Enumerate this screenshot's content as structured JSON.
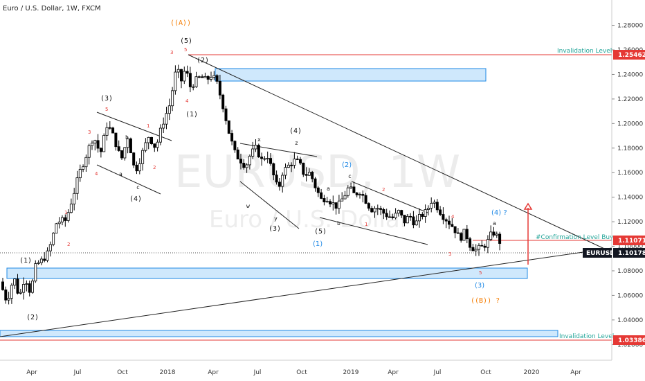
{
  "chart": {
    "title": "Euro / U.S. Dollar, 1W, FXCM",
    "watermark_big": "EURUSD, 1W",
    "watermark_small": "Euro / U.S. Dollar"
  },
  "chart_data": {
    "type": "candlestick",
    "symbol": "EURUSD",
    "timeframe": "1W",
    "source": "FXCM",
    "ylim": [
      1.01,
      1.295
    ],
    "y_ticks": [
      "1.28000",
      "1.26000",
      "1.24000",
      "1.22000",
      "1.20000",
      "1.18000",
      "1.16000",
      "1.14000",
      "1.12000",
      "1.10000",
      "1.08000",
      "1.06000",
      "1.04000",
      "1.02000"
    ],
    "x_ticks": [
      "Apr",
      "Jul",
      "Oct",
      "2018",
      "Apr",
      "Jul",
      "Oct",
      "2019",
      "Apr",
      "Jul",
      "Oct",
      "2020",
      "Apr"
    ],
    "path": [
      [
        0,
        1.071
      ],
      [
        10,
        1.055
      ],
      [
        20,
        1.075
      ],
      [
        28,
        1.058
      ],
      [
        36,
        1.076
      ],
      [
        44,
        1.062
      ],
      [
        52,
        1.085
      ],
      [
        60,
        1.088
      ],
      [
        70,
        1.095
      ],
      [
        82,
        1.12
      ],
      [
        95,
        1.121
      ],
      [
        105,
        1.14
      ],
      [
        115,
        1.16
      ],
      [
        125,
        1.175
      ],
      [
        135,
        1.19
      ],
      [
        145,
        1.175
      ],
      [
        155,
        1.2
      ],
      [
        165,
        1.188
      ],
      [
        175,
        1.17
      ],
      [
        185,
        1.19
      ],
      [
        195,
        1.16
      ],
      [
        205,
        1.175
      ],
      [
        215,
        1.19
      ],
      [
        225,
        1.18
      ],
      [
        235,
        1.2
      ],
      [
        245,
        1.215
      ],
      [
        255,
        1.245
      ],
      [
        262,
        1.235
      ],
      [
        268,
        1.245
      ],
      [
        275,
        1.23
      ],
      [
        283,
        1.235
      ],
      [
        290,
        1.238
      ],
      [
        298,
        1.235
      ],
      [
        306,
        1.24
      ],
      [
        314,
        1.232
      ],
      [
        322,
        1.215
      ],
      [
        332,
        1.19
      ],
      [
        340,
        1.175
      ],
      [
        348,
        1.17
      ],
      [
        355,
        1.165
      ],
      [
        362,
        1.175
      ],
      [
        370,
        1.18
      ],
      [
        378,
        1.17
      ],
      [
        386,
        1.175
      ],
      [
        394,
        1.16
      ],
      [
        402,
        1.145
      ],
      [
        408,
        1.16
      ],
      [
        416,
        1.165
      ],
      [
        424,
        1.17
      ],
      [
        432,
        1.168
      ],
      [
        440,
        1.158
      ],
      [
        448,
        1.16
      ],
      [
        456,
        1.148
      ],
      [
        464,
        1.138
      ],
      [
        472,
        1.14
      ],
      [
        480,
        1.135
      ],
      [
        488,
        1.132
      ],
      [
        496,
        1.14
      ],
      [
        504,
        1.148
      ],
      [
        512,
        1.142
      ],
      [
        520,
        1.145
      ],
      [
        528,
        1.138
      ],
      [
        536,
        1.13
      ],
      [
        544,
        1.132
      ],
      [
        552,
        1.128
      ],
      [
        560,
        1.125
      ],
      [
        568,
        1.123
      ],
      [
        576,
        1.128
      ],
      [
        584,
        1.12
      ],
      [
        592,
        1.125
      ],
      [
        600,
        1.118
      ],
      [
        608,
        1.125
      ],
      [
        616,
        1.128
      ],
      [
        624,
        1.138
      ],
      [
        632,
        1.132
      ],
      [
        640,
        1.125
      ],
      [
        648,
        1.12
      ],
      [
        656,
        1.115
      ],
      [
        664,
        1.106
      ],
      [
        672,
        1.112
      ],
      [
        680,
        1.1
      ],
      [
        688,
        1.097
      ],
      [
        696,
        1.099
      ],
      [
        704,
        1.103
      ],
      [
        712,
        1.112
      ],
      [
        718,
        1.108
      ],
      [
        724,
        1.1018
      ]
    ],
    "levels": [
      {
        "label": "Invalidation Level",
        "value": 1.25462
      },
      {
        "label": "#Confirmation Level Buy",
        "value": 1.11071
      },
      {
        "label": "EURUSD",
        "value": 1.10178
      },
      {
        "label": "Invalidation Level",
        "value": 1.03386
      }
    ],
    "wave_labels": {
      "black": [
        "(1)",
        "(2)",
        "(3)",
        "(4)",
        "(5)",
        "(2)",
        "(1)",
        "(4)",
        "x",
        "z",
        "w",
        "y",
        "(3)",
        "(5)",
        "a",
        "b",
        "c",
        "a"
      ],
      "red": [
        "1",
        "2",
        "3",
        "4",
        "5",
        "1",
        "2",
        "3",
        "4",
        "5",
        "2",
        "1",
        "4",
        "3",
        "5"
      ],
      "small": [
        "a",
        "b",
        "c"
      ],
      "blue": [
        "(2)",
        "(1)",
        "(3)",
        "(4) ?"
      ],
      "orange": [
        "((A))",
        "((B)) ?"
      ]
    },
    "colors": {
      "up": "#ffffff",
      "down": "#000000",
      "wick": "#000000",
      "zone_fill": "#bbdefb",
      "zone_stroke": "#1e88e5",
      "invalid": "#e53935",
      "blue_label": "#1e88e5",
      "orange_label": "#f57c00",
      "level_text": "#26a69a",
      "current_badge": "#131722"
    }
  }
}
